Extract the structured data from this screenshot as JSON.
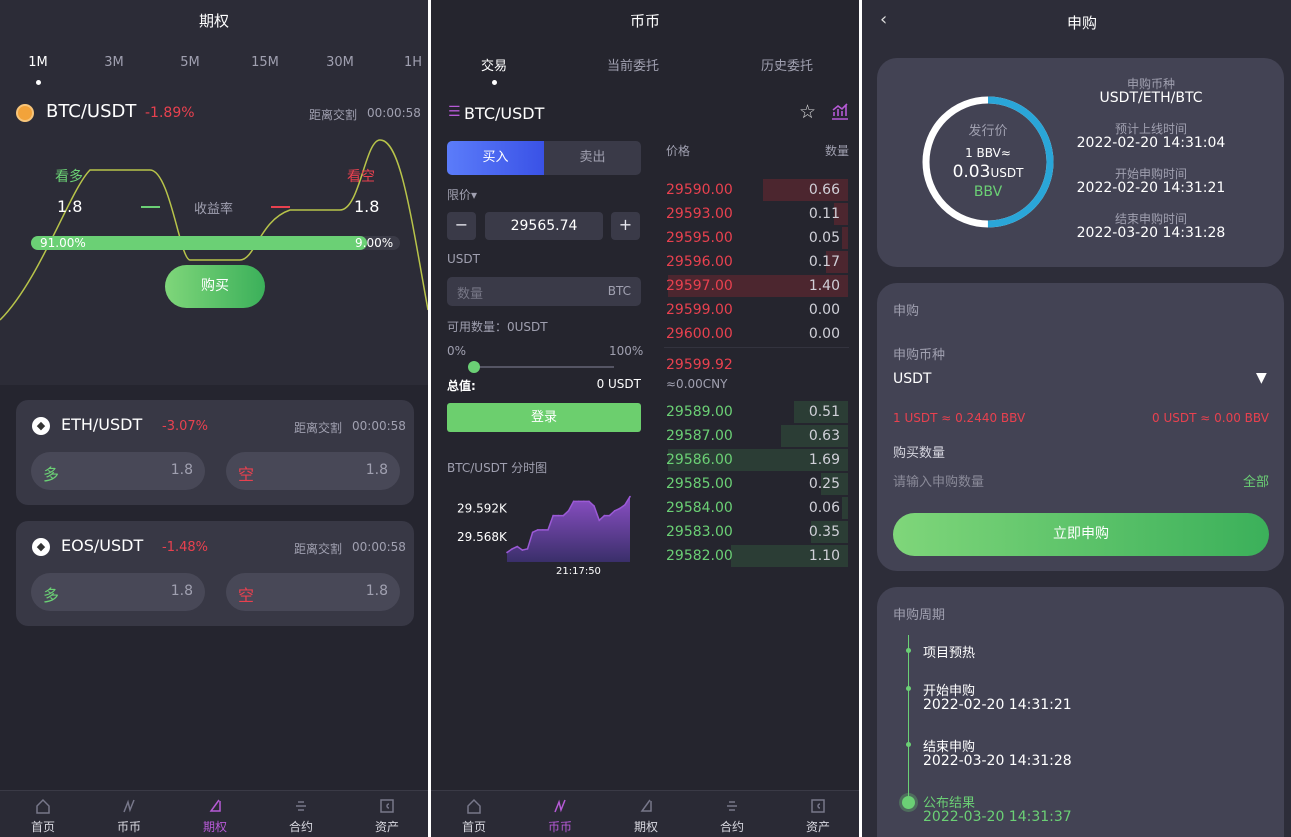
{
  "options": {
    "title": "期权",
    "intervals": [
      "1M",
      "3M",
      "5M",
      "15M",
      "30M",
      "1H"
    ],
    "active_interval": "1M",
    "main": {
      "pair": "BTC/USDT",
      "change": "-1.89%",
      "countdown_label": "距离交割",
      "countdown": "00:00:58",
      "bull_label": "看多",
      "bear_label": "看空",
      "bull_rate": "1.8",
      "bear_rate": "1.8",
      "rate_label": "收益率",
      "bull_pct": "91.00%",
      "bear_pct": "9.00%",
      "bull_fraction": 0.91,
      "buy_button": "购买"
    },
    "cards": [
      {
        "pair": "ETH/USDT",
        "change": "-3.07%",
        "countdown_label": "距离交割",
        "countdown": "00:00:58",
        "long_label": "多",
        "long_rate": "1.8",
        "short_label": "空",
        "short_rate": "1.8"
      },
      {
        "pair": "EOS/USDT",
        "change": "-1.48%",
        "countdown_label": "距离交割",
        "countdown": "00:00:58",
        "long_label": "多",
        "long_rate": "1.8",
        "short_label": "空",
        "short_rate": "1.8"
      }
    ],
    "nav": [
      "首页",
      "币币",
      "期权",
      "合约",
      "资产"
    ],
    "nav_active": 2
  },
  "spot": {
    "title": "币币",
    "tabs": [
      "交易",
      "当前委托",
      "历史委托"
    ],
    "pair": "BTC/USDT",
    "pair_icon": "menu-icon",
    "buy_label": "买入",
    "sell_label": "卖出",
    "order_type": "限价",
    "price_value": "29565.74",
    "price_unit": "USDT",
    "qty_placeholder": "数量",
    "qty_unit": "BTC",
    "available": "可用数量：0USDT",
    "slider_min": "0%",
    "slider_max": "100%",
    "slider_value": 0,
    "total_label": "总值:",
    "total_value": "0 USDT",
    "login_button": "登录",
    "chart_title": "BTC/USDT 分时图",
    "book_price_header": "价格",
    "book_qty_header": "数量",
    "asks": [
      {
        "price": "29590.00",
        "qty": "0.66"
      },
      {
        "price": "29593.00",
        "qty": "0.11"
      },
      {
        "price": "29595.00",
        "qty": "0.05"
      },
      {
        "price": "29596.00",
        "qty": "0.17"
      },
      {
        "price": "29597.00",
        "qty": "1.40"
      },
      {
        "price": "29599.00",
        "qty": "0.00"
      },
      {
        "price": "29600.00",
        "qty": "0.00"
      }
    ],
    "last_price": "29599.92",
    "last_cny": "≈0.00CNY",
    "bids": [
      {
        "price": "29589.00",
        "qty": "0.51"
      },
      {
        "price": "29587.00",
        "qty": "0.63"
      },
      {
        "price": "29586.00",
        "qty": "1.69"
      },
      {
        "price": "29585.00",
        "qty": "0.25"
      },
      {
        "price": "29584.00",
        "qty": "0.06"
      },
      {
        "price": "29583.00",
        "qty": "0.35"
      },
      {
        "price": "29582.00",
        "qty": "1.10"
      }
    ],
    "nav": [
      "首页",
      "币币",
      "期权",
      "合约",
      "资产"
    ],
    "nav_active": 1,
    "chart_data": {
      "type": "area",
      "y_tick_labels": [
        "29.592K",
        "29.568K"
      ],
      "y_ticks": [
        29592,
        29568
      ],
      "x_tick_labels": [
        "21:17:50"
      ],
      "ylim": [
        29547,
        29605
      ],
      "values": [
        29555,
        29558,
        29560,
        29557,
        29558,
        29572,
        29574,
        29574,
        29574,
        29586,
        29586,
        29586,
        29590,
        29598,
        29598,
        29598,
        29598,
        29594,
        29582,
        29586,
        29586,
        29590,
        29592,
        29595,
        29602
      ],
      "color": "#9b5ad6"
    }
  },
  "subscribe": {
    "title": "申购",
    "ring": {
      "label": "发行价",
      "rate": "1 BBV≈",
      "price": "0.03",
      "price_unit": "USDT",
      "token": "BBV",
      "progress": 0.5
    },
    "info": [
      {
        "label": "申购币种",
        "value": "USDT/ETH/BTC"
      },
      {
        "label": "预计上线时间",
        "value": "2022-02-20 14:31:04"
      },
      {
        "label": "开始申购时间",
        "value": "2022-02-20 14:31:21"
      },
      {
        "label": "结束申购时间",
        "value": "2022-03-20 14:31:28"
      }
    ],
    "form": {
      "title": "申购",
      "currency_label": "申购币种",
      "currency_value": "USDT",
      "rate_left": "1 USDT ≈ 0.2440 BBV",
      "rate_right": "0 USDT ≈ 0.00 BBV",
      "qty_label": "购买数量",
      "qty_placeholder": "请输入申购数量",
      "all_label": "全部",
      "submit": "立即申购"
    },
    "timeline": {
      "title": "申购周期",
      "items": [
        {
          "label": "项目预热",
          "date": ""
        },
        {
          "label": "开始申购",
          "date": "2022-02-20 14:31:21"
        },
        {
          "label": "结束申购",
          "date": "2022-03-20 14:31:28"
        },
        {
          "label": "公布结果",
          "date": "2022-03-20 14:31:37"
        }
      ]
    },
    "colors": {
      "accent_green": "#6bd075",
      "ring_blue": "#2aa6d8",
      "down_red": "#e8414f"
    }
  }
}
